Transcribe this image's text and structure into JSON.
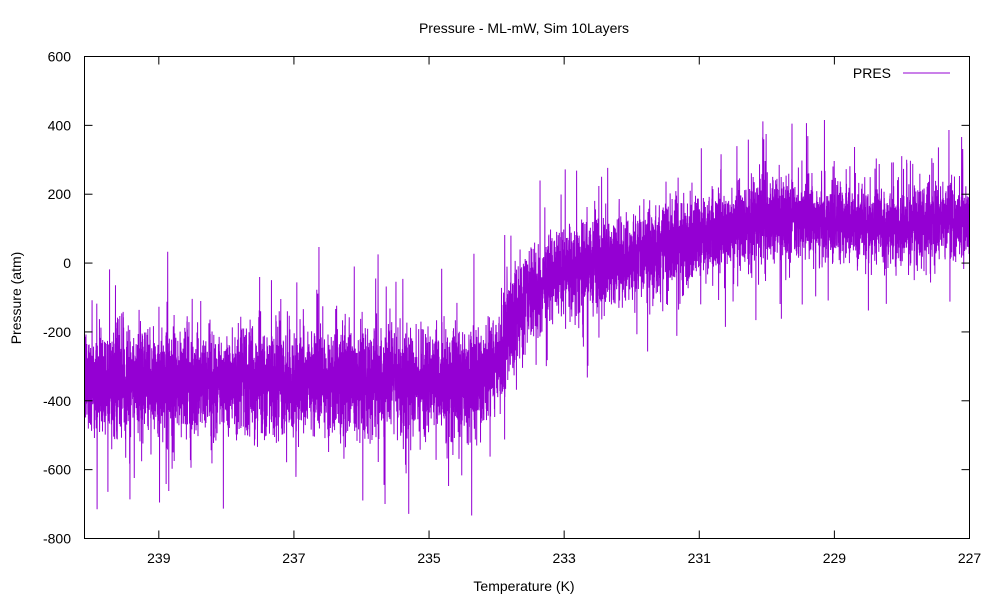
{
  "chart_data": {
    "type": "line",
    "title": "Pressure - ML-mW, Sim 10Layers",
    "xlabel": "Temperature (K)",
    "ylabel": "Pressure (atm)",
    "xlim": [
      240.1,
      227
    ],
    "ylim": [
      -800,
      600
    ],
    "x_reversed": true,
    "x_ticks": [
      239,
      237,
      235,
      233,
      231,
      229,
      227
    ],
    "x_tick_labels": [
      "239",
      "237",
      "235",
      "233",
      "231",
      "229",
      "227"
    ],
    "y_ticks": [
      -800,
      -600,
      -400,
      -200,
      0,
      200,
      400,
      600
    ],
    "y_tick_labels": [
      "-800",
      "-600",
      "-400",
      "-200",
      "0",
      "200",
      "400",
      "600"
    ],
    "grid": false,
    "legend_position": "top-right",
    "series": [
      {
        "name": "PRES",
        "color": "#9400d3",
        "mean_trend": {
          "x": [
            240.1,
            239,
            238,
            237,
            236,
            235,
            234.3,
            234.0,
            233.7,
            233.3,
            233,
            232,
            231,
            230,
            229,
            228,
            227
          ],
          "y": [
            -340,
            -345,
            -340,
            -345,
            -345,
            -350,
            -355,
            -300,
            -120,
            -60,
            -30,
            20,
            70,
            130,
            120,
            110,
            120
          ]
        },
        "noise_amplitude": {
          "x": [
            240.1,
            234.2,
            234.0,
            227
          ],
          "y": [
            140,
            140,
            120,
            100
          ]
        },
        "extremes": {
          "max": 480,
          "min": -790
        }
      }
    ]
  }
}
